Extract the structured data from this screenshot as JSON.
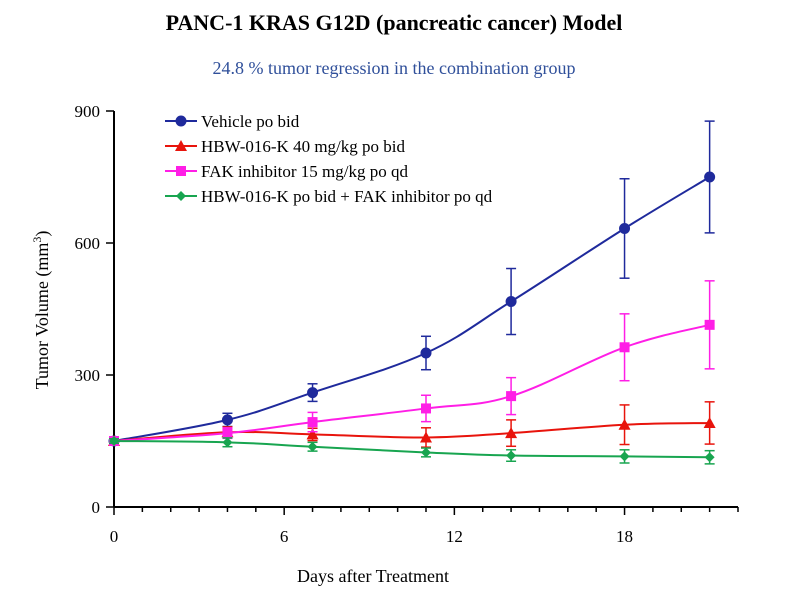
{
  "chart_data": {
    "type": "line",
    "title": "PANC-1 KRAS G12D (pancreatic cancer) Model",
    "subtitle": "24.8 % tumor regression in the combination group",
    "subtitle_color": "#2f4f9a",
    "xlabel": "Days after Treatment",
    "ylabel_main": "Tumor Volume (mm",
    "ylabel_sup": "3",
    "ylabel_end": ")",
    "xlim": [
      0,
      22
    ],
    "ylim": [
      0,
      900
    ],
    "xticks": [
      0,
      6,
      12,
      18
    ],
    "xtick_labels": [
      "0",
      "6",
      "12",
      "18"
    ],
    "xminor_step": 1,
    "yticks": [
      0,
      300,
      600,
      900
    ],
    "ytick_labels": [
      "0",
      "300",
      "600",
      "900"
    ],
    "grid": false,
    "legend_position": "top-left",
    "series": [
      {
        "name": "Vehicle po bid",
        "color": "#1f2a9c",
        "marker": "circle",
        "x": [
          0,
          4,
          7,
          11,
          14,
          18,
          21
        ],
        "y": [
          150,
          198,
          260,
          350,
          467,
          633,
          750
        ],
        "err": [
          8,
          15,
          20,
          38,
          75,
          113,
          127
        ]
      },
      {
        "name": "HBW-016-K 40 mg/kg po bid",
        "color": "#e8140c",
        "marker": "triangle",
        "x": [
          0,
          4,
          7,
          11,
          14,
          18,
          21
        ],
        "y": [
          150,
          170,
          165,
          158,
          168,
          187,
          191
        ],
        "err": [
          6,
          12,
          14,
          22,
          30,
          45,
          48
        ]
      },
      {
        "name": "FAK inhibitor 15 mg/kg po qd",
        "color": "#ff1ee6",
        "marker": "square",
        "x": [
          0,
          4,
          7,
          11,
          14,
          18,
          21
        ],
        "y": [
          150,
          168,
          193,
          224,
          252,
          363,
          414
        ],
        "err": [
          6,
          12,
          22,
          30,
          42,
          76,
          100
        ]
      },
      {
        "name": "HBW-016-K po bid + FAK inhibitor po qd",
        "color": "#18a550",
        "marker": "diamond",
        "x": [
          0,
          4,
          7,
          11,
          14,
          18,
          21
        ],
        "y": [
          150,
          147,
          137,
          124,
          117,
          115,
          113
        ],
        "err": [
          5,
          10,
          10,
          10,
          13,
          15,
          15
        ]
      }
    ]
  }
}
